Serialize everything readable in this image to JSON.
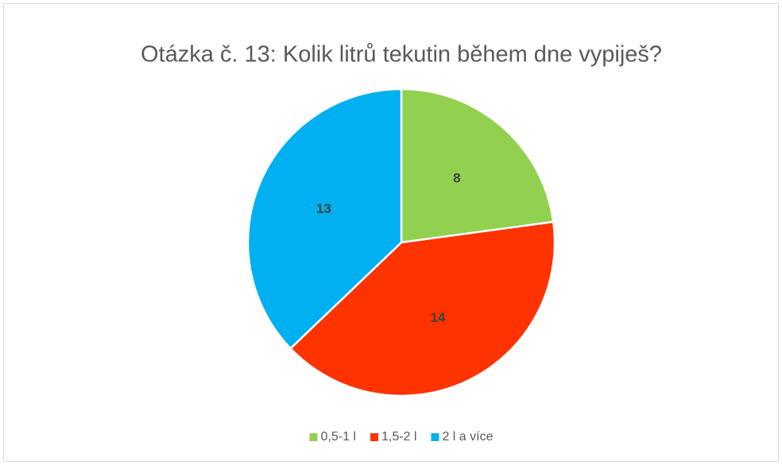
{
  "chart_data": {
    "type": "pie",
    "title": "Otázka č. 13: Kolik litrů tekutin během dne vypiješ?",
    "categories": [
      "0,5-1 l",
      "1,5-2 l",
      "2 l a více"
    ],
    "values": [
      8,
      14,
      13
    ],
    "colors": [
      "#92d050",
      "#ff3300",
      "#00b0f0"
    ],
    "legend": "bottom"
  }
}
